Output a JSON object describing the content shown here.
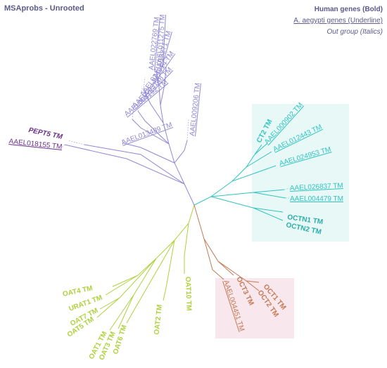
{
  "title": "MSAprobs - Unrooted",
  "legend": {
    "bold": "Human genes (Bold)",
    "underline": "A. aegypti genes (Underline)",
    "italic": "Out group (Italics)"
  },
  "colors": {
    "purple": "#8f87d6",
    "dark_purple": "#6a2f8a",
    "teal": "#2fc4c0",
    "lime": "#aed13c",
    "brown": "#c57a55",
    "teal_highlight": "#cfeeee",
    "pink_highlight": "#f7dde6"
  },
  "labels": {
    "AAEL011275": "AAEL011275 TM",
    "AAEL022769": "AAEL022769 TM",
    "AAEL013271": "AAEL013271 TM",
    "AAEL024914": "AAEL024914 TM",
    "AAEL003148": "AAEL003148 TM",
    "AAEL003192": "AAEL003192 TM",
    "AAEL009206": "AAEL009206 TM",
    "AAEL013489": "AAEL013489 TM",
    "PEPT5": "PEPT5 TM",
    "AAEL018155": "AAEL018155 TM",
    "CT2": "CT2 TM",
    "AAEL000902": "AAEL000902 TM",
    "AAEL012443": "AAEL012443 TM",
    "AAEL024953": "AAEL024953 TM",
    "AAEL026837": "AAEL026837 TM",
    "AAEL004479": "AAEL004479 TM",
    "OCTN1": "OCTN1 TM",
    "OCTN2": "OCTN2 TM",
    "OCT1": "OCT1 TM",
    "OCT2": "OCT2 TM",
    "OCT3": "OCT3 TM",
    "AAEL004451": "AAEL004451 TM",
    "OAT10": "OAT10 TM",
    "OAT2": "OAT2 TM",
    "OAT4": "OAT4 TM",
    "URAT1": "URAT1 TM",
    "OAT7": "OAT7 TM",
    "OAT5": "OAT5 TM",
    "OAT1": "OAT1 TM",
    "OAT3": "OAT3 TM",
    "OAT6": "OAT6 TM"
  }
}
